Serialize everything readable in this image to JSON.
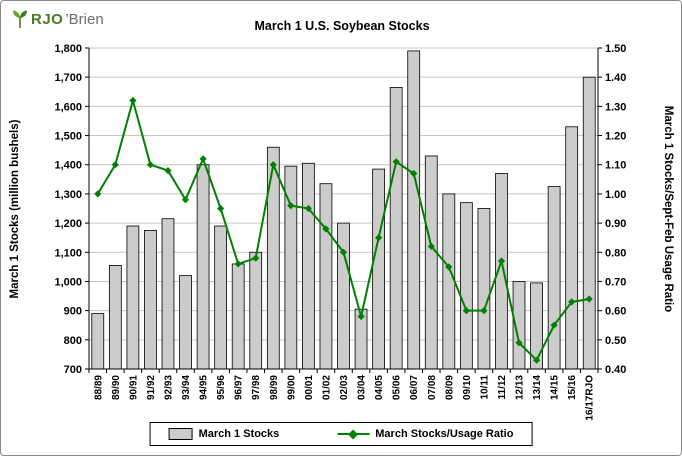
{
  "logo": {
    "brand_green": "RJO",
    "brand_suffix": "’Brien",
    "icon": "leaf-icon"
  },
  "chart_data": {
    "type": "combo",
    "title": "March 1 U.S. Soybean Stocks",
    "categories": [
      "88/89",
      "89/90",
      "90/91",
      "91/92",
      "92/93",
      "93/94",
      "94/95",
      "95/96",
      "96/97",
      "97/98",
      "98/99",
      "99/00",
      "00/01",
      "01/02",
      "02/03",
      "03/04",
      "04/05",
      "05/06",
      "06/07",
      "07/08",
      "08/09",
      "09/10",
      "10/11",
      "11/12",
      "12/13",
      "13/14",
      "14/15",
      "15/16",
      "16/17RJO"
    ],
    "series": [
      {
        "name": "March 1 Stocks",
        "type": "bar",
        "axis": "left",
        "color": "#cccccc",
        "values": [
          890,
          1055,
          1190,
          1175,
          1215,
          1020,
          1400,
          1190,
          1060,
          1100,
          1460,
          1395,
          1405,
          1335,
          1200,
          905,
          1385,
          1665,
          1790,
          1430,
          1300,
          1270,
          1250,
          1370,
          1000,
          995,
          1325,
          1530,
          1700
        ]
      },
      {
        "name": "March Stocks/Usage Ratio",
        "type": "line",
        "axis": "right",
        "color": "#008000",
        "values": [
          1.0,
          1.1,
          1.32,
          1.1,
          1.08,
          0.98,
          1.12,
          0.95,
          0.76,
          0.78,
          1.1,
          0.96,
          0.95,
          0.88,
          0.8,
          0.58,
          0.85,
          1.11,
          1.07,
          0.82,
          0.75,
          0.6,
          0.6,
          0.77,
          0.49,
          0.43,
          0.55,
          0.63,
          0.64
        ]
      }
    ],
    "left_axis": {
      "label": "March 1 Stocks (million bushels)",
      "min": 700,
      "max": 1800,
      "step": 100,
      "tick_labels": [
        "1,800",
        "1,700",
        "1,600",
        "1,500",
        "1,400",
        "1,300",
        "1,200",
        "1,100",
        "1,000",
        "900",
        "800",
        "700"
      ]
    },
    "right_axis": {
      "label": "March 1 Stocks/Sept-Feb Usage Ratio",
      "min": 0.4,
      "max": 1.5,
      "step": 0.1,
      "tick_labels": [
        "1.50",
        "1.40",
        "1.30",
        "1.20",
        "1.10",
        "1.00",
        "0.90",
        "0.80",
        "0.70",
        "0.60",
        "0.50",
        "0.40"
      ]
    },
    "grid": true,
    "legend_position": "bottom"
  }
}
